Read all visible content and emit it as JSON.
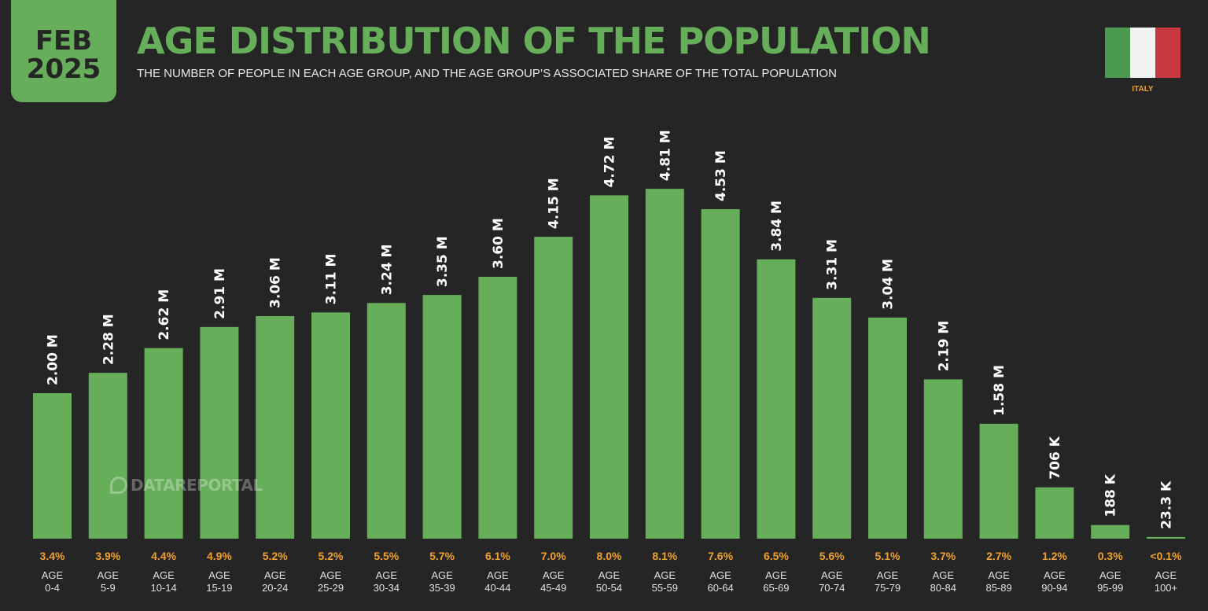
{
  "header": {
    "month": "FEB",
    "year": "2025",
    "title": "AGE DISTRIBUTION OF THE POPULATION",
    "subtitle": "THE NUMBER OF PEOPLE IN EACH AGE GROUP, AND THE AGE GROUP’S ASSOCIATED SHARE OF THE TOTAL POPULATION"
  },
  "country": {
    "name": "ITALY",
    "flag_colors": [
      "#4C9A52",
      "#F2F2F2",
      "#C8393F"
    ]
  },
  "watermark": "DATAREPORTAL",
  "colors": {
    "accent": "#67AE5B",
    "percent": "#F0A030",
    "background": "#252525"
  },
  "chart_data": {
    "type": "bar",
    "title": "AGE DISTRIBUTION OF THE POPULATION",
    "categories": [
      "0-4",
      "5-9",
      "10-14",
      "15-19",
      "20-24",
      "25-29",
      "30-34",
      "35-39",
      "40-44",
      "45-49",
      "50-54",
      "55-59",
      "60-64",
      "65-69",
      "70-74",
      "75-79",
      "80-84",
      "85-89",
      "90-94",
      "95-99",
      "100+"
    ],
    "category_prefix": "AGE",
    "values": [
      2.0,
      2.28,
      2.62,
      2.91,
      3.06,
      3.11,
      3.24,
      3.35,
      3.6,
      4.15,
      4.72,
      4.81,
      4.53,
      3.84,
      3.31,
      3.04,
      2.19,
      1.58,
      0.706,
      0.188,
      0.0233
    ],
    "value_unit": "millions",
    "value_labels": [
      "2.00 M",
      "2.28 M",
      "2.62 M",
      "2.91 M",
      "3.06 M",
      "3.11 M",
      "3.24 M",
      "3.35 M",
      "3.60 M",
      "4.15 M",
      "4.72 M",
      "4.81 M",
      "4.53 M",
      "3.84 M",
      "3.31 M",
      "3.04 M",
      "2.19 M",
      "1.58 M",
      "706 K",
      "188 K",
      "23.3 K"
    ],
    "share_labels": [
      "3.4%",
      "3.9%",
      "4.4%",
      "4.9%",
      "5.2%",
      "5.2%",
      "5.5%",
      "5.7%",
      "6.1%",
      "7.0%",
      "8.0%",
      "8.1%",
      "7.6%",
      "6.5%",
      "5.6%",
      "5.1%",
      "3.7%",
      "2.7%",
      "1.2%",
      "0.3%",
      "<0.1%"
    ],
    "xlabel": "",
    "ylabel": "",
    "ylim": [
      0,
      5.0
    ]
  }
}
